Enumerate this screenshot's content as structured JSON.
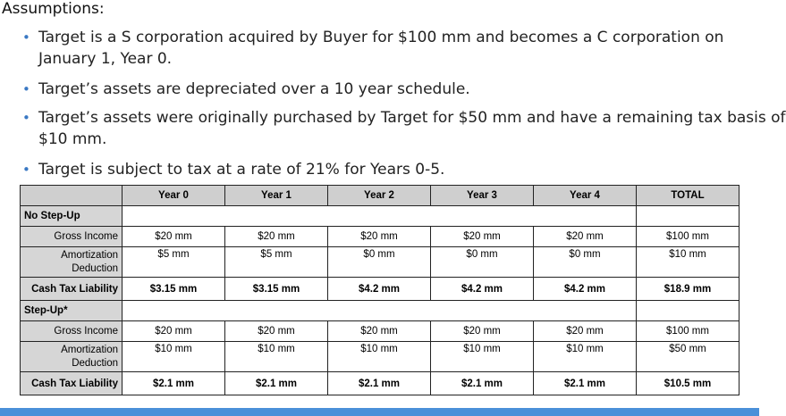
{
  "heading": "Assumptions:",
  "bullets": [
    {
      "line1": "Target is a S corporation acquired by Buyer for $100 mm and becomes a C corporation on",
      "line2": "January 1, Year 0."
    },
    {
      "line1": "Target’s assets are depreciated over a 10 year schedule.",
      "line2": ""
    },
    {
      "line1": "Target’s assets were originally purchased by Target for $50 mm and have a remaining tax basis of",
      "line2": "$10 mm."
    },
    {
      "line1": "Target is subject to tax at a rate of 21% for Years 0-5.",
      "line2": ""
    }
  ],
  "table": {
    "columns": [
      "",
      "Year 0",
      "Year 1",
      "Year 2",
      "Year 3",
      "Year 4",
      "TOTAL"
    ],
    "sections": [
      {
        "title": "No Step-Up",
        "rows": [
          {
            "label": "Gross Income",
            "values": [
              "$20 mm",
              "$20 mm",
              "$20 mm",
              "$20 mm",
              "$20 mm",
              "$100 mm"
            ]
          },
          {
            "label_line1": "Amortization",
            "label_line2": "Deduction",
            "values": [
              "$5 mm",
              "$5 mm",
              "$0 mm",
              "$0 mm",
              "$0 mm",
              "$10 mm"
            ]
          },
          {
            "label": "Cash Tax Liability",
            "values": [
              "$3.15 mm",
              "$3.15 mm",
              "$4.2 mm",
              "$4.2 mm",
              "$4.2 mm",
              "$18.9 mm"
            ]
          }
        ]
      },
      {
        "title": "Step-Up*",
        "rows": [
          {
            "label": "Gross Income",
            "values": [
              "$20 mm",
              "$20 mm",
              "$20 mm",
              "$20 mm",
              "$20 mm",
              "$100 mm"
            ]
          },
          {
            "label_line1": "Amortization",
            "label_line2": "Deduction",
            "values": [
              "$10 mm",
              "$10 mm",
              "$10 mm",
              "$10 mm",
              "$10 mm",
              "$50 mm"
            ]
          },
          {
            "label": "Cash Tax Liability",
            "values": [
              "$2.1 mm",
              "$2.1 mm",
              "$2.1 mm",
              "$2.1 mm",
              "$2.1 mm",
              "$10.5 mm"
            ]
          }
        ]
      }
    ]
  },
  "colors": {
    "bullet": "#3a78c3",
    "header_fill": "#cfcfcf",
    "label_fill": "#d6d6d6",
    "bottom_bar": "#4a90d9"
  }
}
